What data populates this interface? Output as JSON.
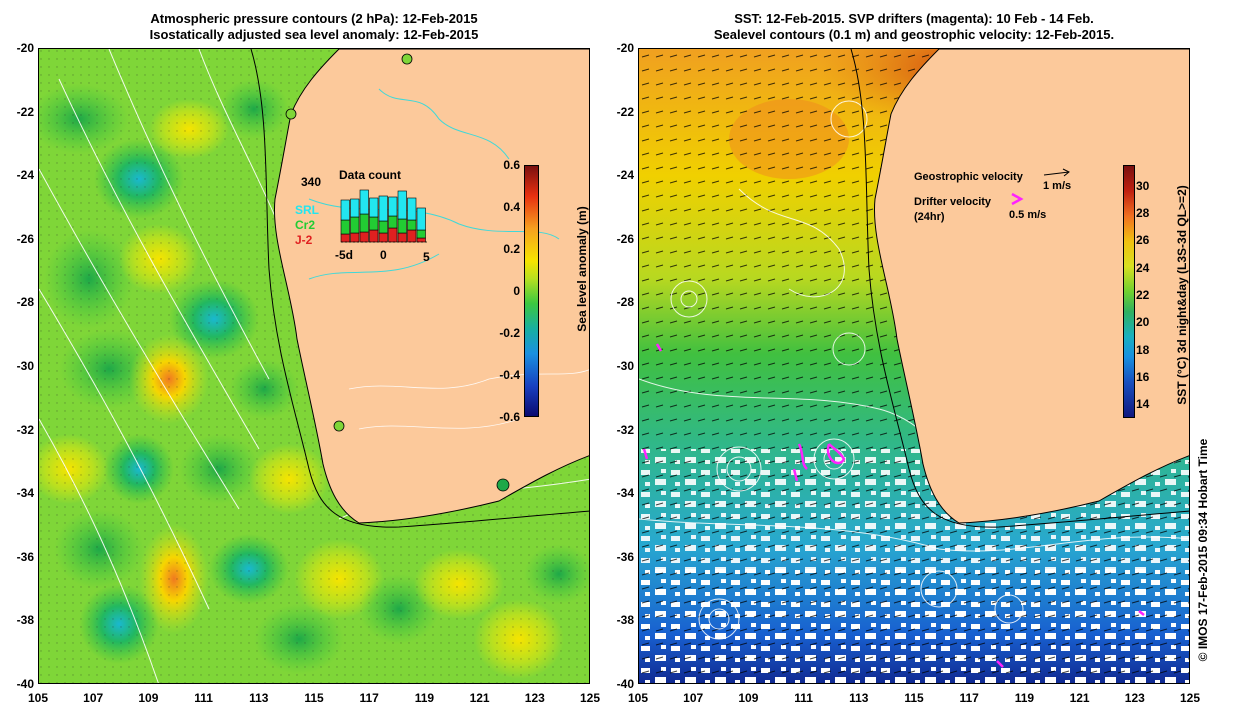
{
  "left_panel": {
    "title_line1": "Atmospheric pressure contours (2 hPa): 12-Feb-2015",
    "title_line2": "Isostatically adjusted sea level anomaly: 12-Feb-2015",
    "lon_ticks": [
      "105",
      "107",
      "109",
      "111",
      "113",
      "115",
      "117",
      "119",
      "121",
      "123",
      "125"
    ],
    "lat_ticks": [
      "-20",
      "-22",
      "-24",
      "-26",
      "-28",
      "-30",
      "-32",
      "-34",
      "-36",
      "-38",
      "-40"
    ],
    "colorbar": {
      "label": "Sea level anomaly (m)",
      "ticks": [
        "0.6",
        "0.4",
        "0.2",
        "0",
        "-0.2",
        "-0.4",
        "-0.6"
      ],
      "range": [
        -0.6,
        0.6
      ]
    },
    "data_count": {
      "title": "Data count",
      "max_label": "340",
      "axis_ticks": [
        "-5d",
        "0",
        "5"
      ],
      "legend": [
        {
          "name": "SRL",
          "color": "#22e6f0"
        },
        {
          "name": "Cr2",
          "color": "#22cc33"
        },
        {
          "name": "J-2",
          "color": "#e02020"
        }
      ]
    }
  },
  "right_panel": {
    "title_line1": "SST: 12-Feb-2015. SVP drifters (magenta): 10 Feb - 14 Feb.",
    "title_line2": "Sealevel contours (0.1 m) and geostrophic velocity: 12-Feb-2015.",
    "lon_ticks": [
      "105",
      "107",
      "109",
      "111",
      "113",
      "115",
      "117",
      "119",
      "121",
      "123",
      "125"
    ],
    "lat_ticks": [
      "-20",
      "-22",
      "-24",
      "-26",
      "-28",
      "-30",
      "-32",
      "-34",
      "-36",
      "-38",
      "-40"
    ],
    "colorbar": {
      "label": "SST (°C) 3d night&day (L3S-3d QL>=2)",
      "ticks": [
        "30",
        "28",
        "26",
        "24",
        "22",
        "20",
        "18",
        "16",
        "14"
      ],
      "range": [
        13,
        31.5
      ]
    },
    "legend": {
      "geostrophic_label": "Geostrophic velocity",
      "geostrophic_scale": "1 m/s",
      "drifter_label": "Drifter velocity",
      "drifter_sub": "(24hr)",
      "drifter_scale": "0.5 m/s"
    }
  },
  "credit": "© IMOS 17-Feb-2015 09:34 Hobart Time",
  "colors": {
    "land": "#fcc99b",
    "drifter": "#ff22ff"
  }
}
